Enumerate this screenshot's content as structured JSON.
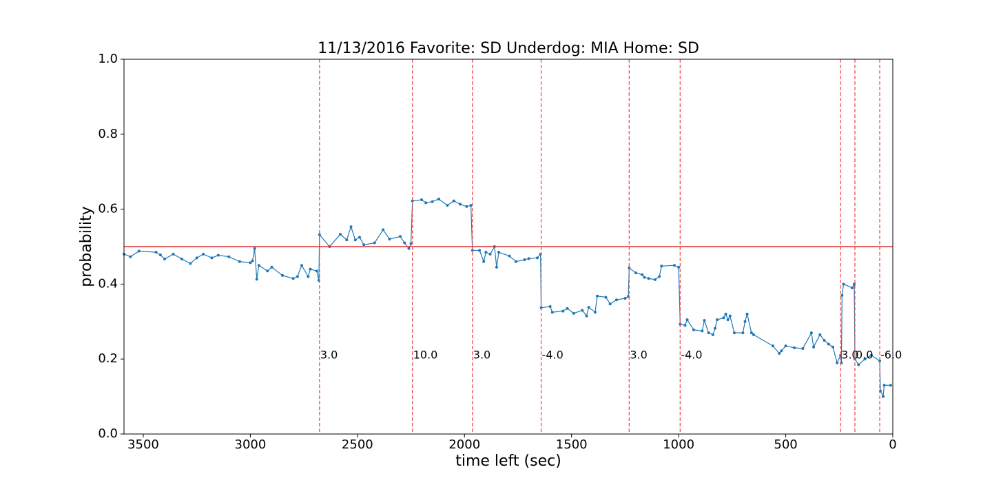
{
  "chart_data": {
    "type": "line",
    "title": "11/13/2016 Favorite: SD Underdog: MIA Home: SD",
    "xlabel": "time left (sec)",
    "ylabel": "probability",
    "color": "#1f77b4",
    "xlim": [
      3590,
      0
    ],
    "ylim": [
      0,
      1
    ],
    "xticks": [
      3500,
      3000,
      2500,
      2000,
      1500,
      1000,
      500,
      0
    ],
    "yticks": [
      {
        "value": 0,
        "label": "0.0"
      },
      0.2,
      0.4,
      0.6,
      0.8,
      {
        "value": 1,
        "label": "1.0"
      }
    ],
    "hline": {
      "value": 0.5,
      "color": "#e03030"
    },
    "event_color": "#f05050",
    "events": [
      {
        "x": 2677,
        "label": "3.0"
      },
      {
        "x": 2243,
        "label": "10.0"
      },
      {
        "x": 1963,
        "label": "3.0"
      },
      {
        "x": 1642,
        "label": "-4.0"
      },
      {
        "x": 1231,
        "label": "3.0"
      },
      {
        "x": 993,
        "label": "-4.0"
      },
      {
        "x": 244,
        "label": "3.0"
      },
      {
        "x": 177,
        "label": "0.0"
      },
      {
        "x": 61,
        "label": "-6.0"
      }
    ],
    "x": [
      3590,
      3560,
      3520,
      3440,
      3420,
      3400,
      3360,
      3320,
      3280,
      3250,
      3220,
      3180,
      3150,
      3100,
      3050,
      3000,
      2990,
      2980,
      2970,
      2960,
      2920,
      2900,
      2850,
      2800,
      2780,
      2760,
      2730,
      2720,
      2690,
      2680,
      2677,
      2630,
      2580,
      2550,
      2530,
      2510,
      2490,
      2470,
      2420,
      2380,
      2350,
      2300,
      2280,
      2260,
      2250,
      2243,
      2200,
      2180,
      2150,
      2120,
      2080,
      2050,
      2020,
      1990,
      1970,
      1963,
      1930,
      1910,
      1900,
      1880,
      1860,
      1850,
      1840,
      1790,
      1760,
      1720,
      1700,
      1660,
      1645,
      1642,
      1600,
      1590,
      1540,
      1520,
      1490,
      1450,
      1430,
      1420,
      1390,
      1380,
      1340,
      1320,
      1290,
      1250,
      1235,
      1231,
      1200,
      1170,
      1160,
      1140,
      1110,
      1090,
      1080,
      1020,
      1000,
      993,
      970,
      960,
      930,
      890,
      880,
      860,
      840,
      830,
      820,
      790,
      780,
      770,
      760,
      740,
      700,
      690,
      680,
      660,
      650,
      560,
      530,
      520,
      500,
      460,
      420,
      380,
      370,
      340,
      320,
      300,
      280,
      260,
      244,
      240,
      237,
      230,
      190,
      180,
      177,
      160,
      130,
      100,
      61,
      58,
      45,
      40,
      10
    ],
    "values": [
      0.48,
      0.473,
      0.488,
      0.485,
      0.478,
      0.467,
      0.48,
      0.467,
      0.455,
      0.47,
      0.48,
      0.47,
      0.477,
      0.473,
      0.46,
      0.457,
      0.462,
      0.495,
      0.413,
      0.45,
      0.435,
      0.445,
      0.423,
      0.415,
      0.42,
      0.45,
      0.42,
      0.44,
      0.435,
      0.41,
      0.532,
      0.5,
      0.533,
      0.518,
      0.553,
      0.518,
      0.525,
      0.505,
      0.51,
      0.545,
      0.52,
      0.527,
      0.51,
      0.495,
      0.508,
      0.622,
      0.625,
      0.617,
      0.62,
      0.627,
      0.61,
      0.622,
      0.613,
      0.607,
      0.61,
      0.49,
      0.49,
      0.46,
      0.485,
      0.48,
      0.5,
      0.445,
      0.485,
      0.475,
      0.46,
      0.465,
      0.468,
      0.47,
      0.48,
      0.337,
      0.34,
      0.325,
      0.328,
      0.335,
      0.322,
      0.33,
      0.315,
      0.338,
      0.325,
      0.368,
      0.365,
      0.347,
      0.358,
      0.362,
      0.367,
      0.443,
      0.43,
      0.425,
      0.418,
      0.415,
      0.412,
      0.42,
      0.448,
      0.45,
      0.445,
      0.293,
      0.29,
      0.305,
      0.278,
      0.275,
      0.303,
      0.27,
      0.265,
      0.282,
      0.305,
      0.31,
      0.32,
      0.305,
      0.315,
      0.27,
      0.27,
      0.3,
      0.32,
      0.27,
      0.265,
      0.235,
      0.215,
      0.222,
      0.235,
      0.23,
      0.228,
      0.27,
      0.232,
      0.265,
      0.25,
      0.24,
      0.232,
      0.19,
      0.21,
      0.19,
      0.37,
      0.4,
      0.39,
      0.4,
      0.2,
      0.185,
      0.2,
      0.21,
      0.195,
      0.115,
      0.1,
      0.13,
      0.13
    ]
  }
}
